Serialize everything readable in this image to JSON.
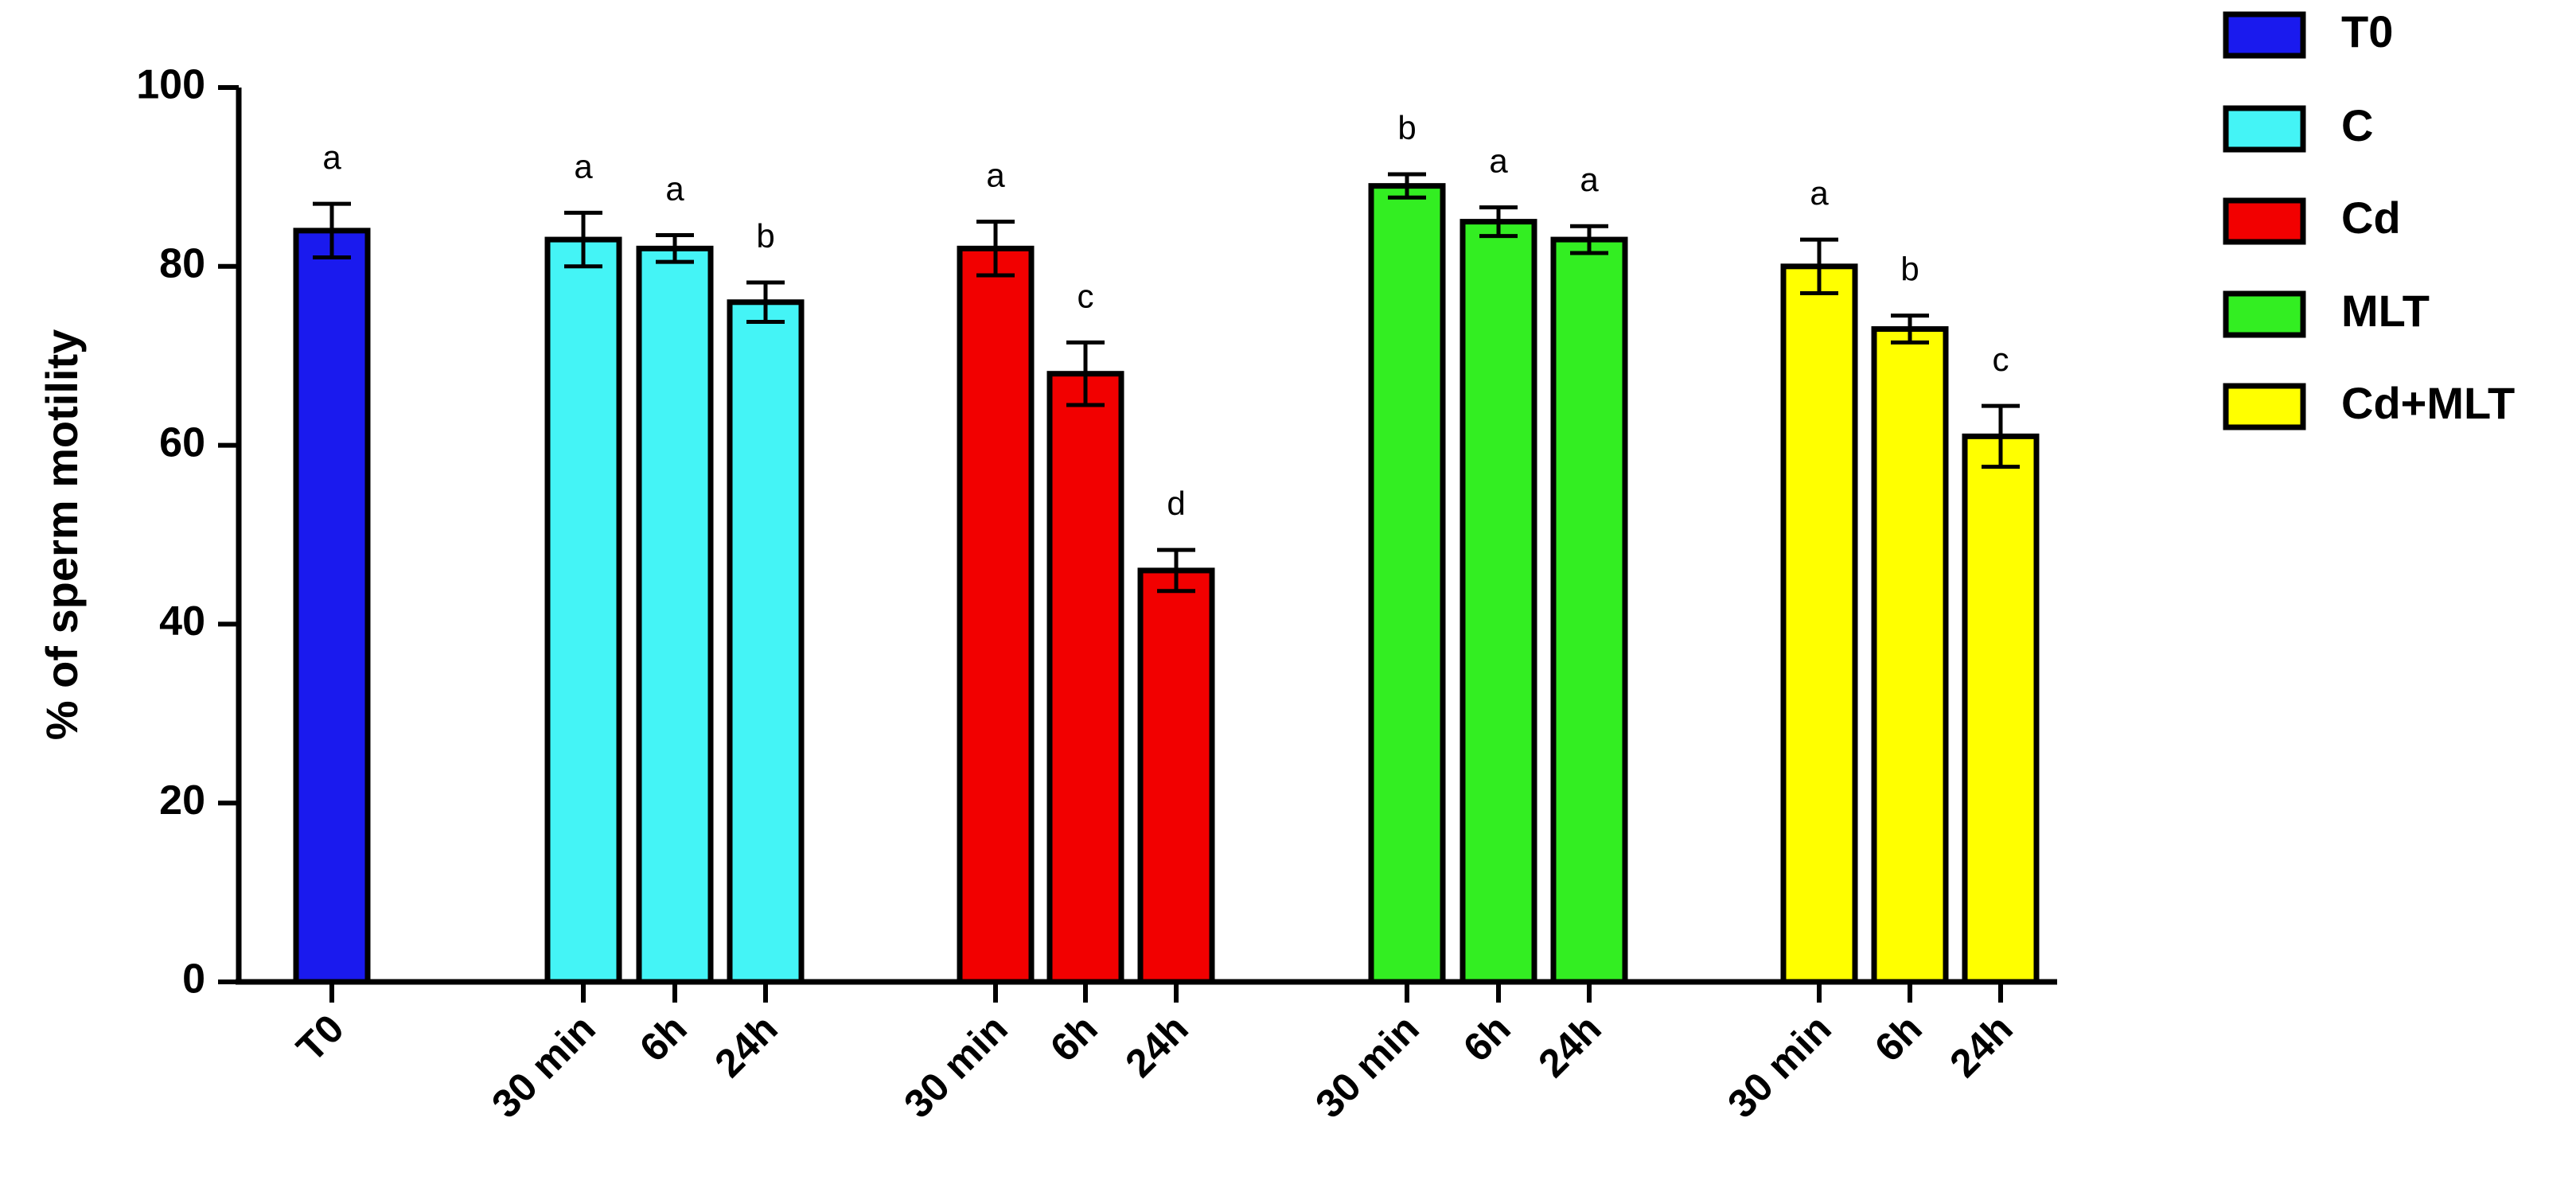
{
  "chart_data": {
    "type": "bar",
    "ylabel": "% of sperm motility",
    "xlabel": "",
    "ylim": [
      0,
      100
    ],
    "yticks": [
      "0",
      "20",
      "40",
      "60",
      "80",
      "100"
    ],
    "legend_position": "right",
    "series": [
      {
        "name": "T0",
        "color": "#1a1aee",
        "bars": [
          {
            "category": "T0",
            "value": 84,
            "error": 3,
            "letter": "a"
          }
        ]
      },
      {
        "name": "C",
        "color": "#44f4f6",
        "bars": [
          {
            "category": "30 min",
            "value": 83,
            "error": 3,
            "letter": "a"
          },
          {
            "category": "6h",
            "value": 82,
            "error": 1.5,
            "letter": "a"
          },
          {
            "category": "24h",
            "value": 76,
            "error": 2.2,
            "letter": "b"
          }
        ]
      },
      {
        "name": "Cd",
        "color": "#f20000",
        "bars": [
          {
            "category": "30 min",
            "value": 82,
            "error": 3,
            "letter": "a"
          },
          {
            "category": "6h",
            "value": 68,
            "error": 3.5,
            "letter": "c"
          },
          {
            "category": "24h",
            "value": 46,
            "error": 2.3,
            "letter": "d"
          }
        ]
      },
      {
        "name": "MLT",
        "color": "#33ee22",
        "bars": [
          {
            "category": "30 min",
            "value": 89,
            "error": 1.3,
            "letter": "b"
          },
          {
            "category": "6h",
            "value": 85,
            "error": 1.6,
            "letter": "a"
          },
          {
            "category": "24h",
            "value": 83,
            "error": 1.5,
            "letter": "a"
          }
        ]
      },
      {
        "name": "Cd+MLT",
        "color": "#ffff00",
        "bars": [
          {
            "category": "30 min",
            "value": 80,
            "error": 3,
            "letter": "a"
          },
          {
            "category": "6h",
            "value": 73,
            "error": 1.5,
            "letter": "b"
          },
          {
            "category": "24h",
            "value": 61,
            "error": 3.4,
            "letter": "c"
          }
        ]
      }
    ]
  }
}
